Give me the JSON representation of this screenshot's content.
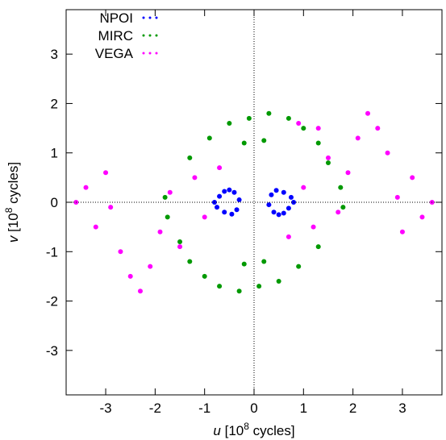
{
  "chart_data": {
    "type": "scatter",
    "xlabel": {
      "var": "u",
      "prefix": "[10",
      "exp": "8",
      "suffix": " cycles]"
    },
    "ylabel": {
      "var": "v",
      "prefix": "[10",
      "exp": "8",
      "suffix": " cycles]"
    },
    "xlim": [
      -3.8,
      3.8
    ],
    "ylim": [
      -3.9,
      3.9
    ],
    "x_ticks": [
      -3,
      -2,
      -1,
      0,
      1,
      2,
      3
    ],
    "y_ticks": [
      3,
      2,
      1,
      0,
      -1,
      -2,
      -3
    ],
    "zero_lines": true,
    "grid": false,
    "legend_position": "top-left",
    "series": [
      {
        "name": "NPOI",
        "color": "#0000ff",
        "marker": "dot",
        "description": "dense arcs at small baselines",
        "points": [
          [
            -0.8,
            0.0
          ],
          [
            -0.7,
            0.12
          ],
          [
            -0.6,
            0.22
          ],
          [
            -0.5,
            0.25
          ],
          [
            -0.4,
            0.2
          ],
          [
            -0.3,
            0.05
          ],
          [
            -0.75,
            -0.1
          ],
          [
            -0.6,
            -0.2
          ],
          [
            -0.45,
            -0.24
          ],
          [
            -0.35,
            -0.15
          ],
          [
            0.8,
            0.0
          ],
          [
            0.7,
            -0.12
          ],
          [
            0.6,
            -0.22
          ],
          [
            0.5,
            -0.25
          ],
          [
            0.4,
            -0.2
          ],
          [
            0.3,
            -0.05
          ],
          [
            0.75,
            0.1
          ],
          [
            0.6,
            0.2
          ],
          [
            0.45,
            0.24
          ],
          [
            0.35,
            0.15
          ]
        ]
      },
      {
        "name": "MIRC",
        "color": "#009900",
        "marker": "dot",
        "description": "rings of radial tracks around 1.1-2.0",
        "points": [
          [
            -1.3,
            0.9
          ],
          [
            -0.9,
            1.3
          ],
          [
            -0.5,
            1.6
          ],
          [
            -0.1,
            1.7
          ],
          [
            0.3,
            1.8
          ],
          [
            0.7,
            1.7
          ],
          [
            1.0,
            1.5
          ],
          [
            1.3,
            1.2
          ],
          [
            1.5,
            0.8
          ],
          [
            1.75,
            0.3
          ],
          [
            1.8,
            -0.1
          ],
          [
            1.3,
            -0.9
          ],
          [
            0.9,
            -1.3
          ],
          [
            0.5,
            -1.6
          ],
          [
            0.1,
            -1.7
          ],
          [
            -0.3,
            -1.8
          ],
          [
            -0.7,
            -1.7
          ],
          [
            -1.0,
            -1.5
          ],
          [
            -1.3,
            -1.2
          ],
          [
            -1.5,
            -0.8
          ],
          [
            -1.75,
            -0.3
          ],
          [
            -1.8,
            0.1
          ],
          [
            -0.2,
            1.2
          ],
          [
            0.2,
            1.25
          ],
          [
            0.2,
            -1.2
          ],
          [
            -0.2,
            -1.25
          ]
        ]
      },
      {
        "name": "VEGA",
        "color": "#ff00ff",
        "marker": "dot",
        "description": "short tracks along an elongated band",
        "points": [
          [
            -3.6,
            0.0
          ],
          [
            -3.4,
            0.3
          ],
          [
            -3.2,
            -0.5
          ],
          [
            -3.0,
            0.6
          ],
          [
            -2.9,
            -0.1
          ],
          [
            -2.7,
            -1.0
          ],
          [
            -2.5,
            -1.5
          ],
          [
            -2.3,
            -1.8
          ],
          [
            -2.1,
            -1.3
          ],
          [
            -1.9,
            -0.6
          ],
          [
            -1.7,
            0.2
          ],
          [
            -1.5,
            -0.9
          ],
          [
            -1.2,
            0.5
          ],
          [
            -1.0,
            -0.3
          ],
          [
            -0.7,
            0.7
          ],
          [
            3.6,
            0.0
          ],
          [
            3.4,
            -0.3
          ],
          [
            3.2,
            0.5
          ],
          [
            3.0,
            -0.6
          ],
          [
            2.9,
            0.1
          ],
          [
            2.7,
            1.0
          ],
          [
            2.5,
            1.5
          ],
          [
            2.3,
            1.8
          ],
          [
            2.1,
            1.3
          ],
          [
            1.9,
            0.6
          ],
          [
            1.7,
            -0.2
          ],
          [
            1.5,
            0.9
          ],
          [
            1.2,
            -0.5
          ],
          [
            1.0,
            0.3
          ],
          [
            0.7,
            -0.7
          ],
          [
            0.9,
            1.6
          ],
          [
            1.3,
            1.5
          ]
        ]
      }
    ]
  }
}
